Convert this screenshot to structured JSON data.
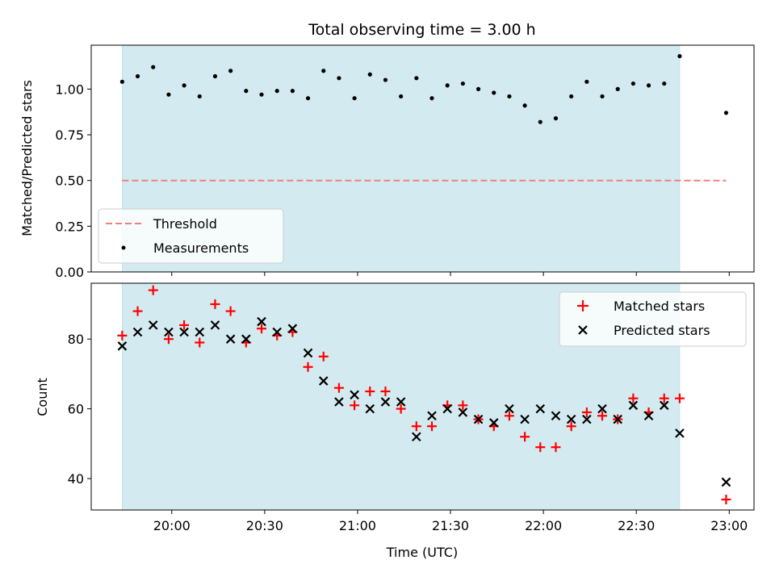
{
  "chart_data": {
    "title": "Total observing time = 3.00 h",
    "xlabel": "Time (UTC)",
    "x_ticks": [
      "20:00",
      "20:30",
      "21:00",
      "21:30",
      "22:00",
      "22:30",
      "23:00"
    ],
    "xlim": [
      "19:34",
      "23:08"
    ],
    "shaded_interval": [
      "19:44",
      "22:44"
    ],
    "shade_color": "#d3ebf0",
    "panels": [
      {
        "type": "scatter",
        "ylabel": "Matched/Predicted stars",
        "ylim": [
          0,
          1.24
        ],
        "y_ticks": [
          "0.00",
          "0.25",
          "0.50",
          "0.75",
          "1.00"
        ],
        "threshold": {
          "name": "Threshold",
          "value": 0.5,
          "x_range": [
            "19:44",
            "22:59"
          ],
          "color": "#f08080"
        },
        "series": [
          {
            "name": "Measurements",
            "color": "#000000",
            "marker": "dot",
            "points": [
              [
                "19:44",
                1.04
              ],
              [
                "19:49",
                1.07
              ],
              [
                "19:54",
                1.12
              ],
              [
                "19:59",
                0.97
              ],
              [
                "20:04",
                1.02
              ],
              [
                "20:09",
                0.96
              ],
              [
                "20:14",
                1.07
              ],
              [
                "20:19",
                1.1
              ],
              [
                "20:24",
                0.99
              ],
              [
                "20:29",
                0.97
              ],
              [
                "20:34",
                0.99
              ],
              [
                "20:39",
                0.99
              ],
              [
                "20:44",
                0.95
              ],
              [
                "20:49",
                1.1
              ],
              [
                "20:54",
                1.06
              ],
              [
                "20:59",
                0.95
              ],
              [
                "21:04",
                1.08
              ],
              [
                "21:09",
                1.05
              ],
              [
                "21:14",
                0.96
              ],
              [
                "21:19",
                1.06
              ],
              [
                "21:24",
                0.95
              ],
              [
                "21:29",
                1.02
              ],
              [
                "21:34",
                1.03
              ],
              [
                "21:39",
                1.0
              ],
              [
                "21:44",
                0.98
              ],
              [
                "21:49",
                0.96
              ],
              [
                "21:54",
                0.91
              ],
              [
                "21:59",
                0.82
              ],
              [
                "22:04",
                0.84
              ],
              [
                "22:09",
                0.96
              ],
              [
                "22:14",
                1.04
              ],
              [
                "22:19",
                0.96
              ],
              [
                "22:24",
                1.0
              ],
              [
                "22:29",
                1.03
              ],
              [
                "22:34",
                1.02
              ],
              [
                "22:39",
                1.03
              ],
              [
                "22:44",
                1.18
              ],
              [
                "22:59",
                0.87
              ]
            ]
          }
        ],
        "legend": {
          "placement": "lower-left",
          "entries": [
            "Threshold",
            "Measurements"
          ]
        }
      },
      {
        "type": "scatter",
        "ylabel": "Count",
        "ylim": [
          31,
          96
        ],
        "y_ticks": [
          "40",
          "60",
          "80"
        ],
        "series": [
          {
            "name": "Matched stars",
            "color": "#ff0000",
            "marker": "plus",
            "points": [
              [
                "19:44",
                81
              ],
              [
                "19:49",
                88
              ],
              [
                "19:54",
                94
              ],
              [
                "19:59",
                80
              ],
              [
                "20:04",
                84
              ],
              [
                "20:09",
                79
              ],
              [
                "20:14",
                90
              ],
              [
                "20:19",
                88
              ],
              [
                "20:24",
                79
              ],
              [
                "20:29",
                83
              ],
              [
                "20:34",
                81
              ],
              [
                "20:39",
                82
              ],
              [
                "20:44",
                72
              ],
              [
                "20:49",
                75
              ],
              [
                "20:54",
                66
              ],
              [
                "20:59",
                61
              ],
              [
                "21:04",
                65
              ],
              [
                "21:09",
                65
              ],
              [
                "21:14",
                60
              ],
              [
                "21:19",
                55
              ],
              [
                "21:24",
                55
              ],
              [
                "21:29",
                61
              ],
              [
                "21:34",
                61
              ],
              [
                "21:39",
                57
              ],
              [
                "21:44",
                55
              ],
              [
                "21:49",
                58
              ],
              [
                "21:54",
                52
              ],
              [
                "21:59",
                49
              ],
              [
                "22:04",
                49
              ],
              [
                "22:09",
                55
              ],
              [
                "22:14",
                59
              ],
              [
                "22:19",
                58
              ],
              [
                "22:24",
                57
              ],
              [
                "22:29",
                63
              ],
              [
                "22:34",
                59
              ],
              [
                "22:39",
                63
              ],
              [
                "22:44",
                63
              ],
              [
                "22:59",
                34
              ]
            ]
          },
          {
            "name": "Predicted stars",
            "color": "#000000",
            "marker": "x",
            "points": [
              [
                "19:44",
                78
              ],
              [
                "19:49",
                82
              ],
              [
                "19:54",
                84
              ],
              [
                "19:59",
                82
              ],
              [
                "20:04",
                82
              ],
              [
                "20:09",
                82
              ],
              [
                "20:14",
                84
              ],
              [
                "20:19",
                80
              ],
              [
                "20:24",
                80
              ],
              [
                "20:29",
                85
              ],
              [
                "20:34",
                82
              ],
              [
                "20:39",
                83
              ],
              [
                "20:44",
                76
              ],
              [
                "20:49",
                68
              ],
              [
                "20:54",
                62
              ],
              [
                "20:59",
                64
              ],
              [
                "21:04",
                60
              ],
              [
                "21:09",
                62
              ],
              [
                "21:14",
                62
              ],
              [
                "21:19",
                52
              ],
              [
                "21:24",
                58
              ],
              [
                "21:29",
                60
              ],
              [
                "21:34",
                59
              ],
              [
                "21:39",
                57
              ],
              [
                "21:44",
                56
              ],
              [
                "21:49",
                60
              ],
              [
                "21:54",
                57
              ],
              [
                "21:59",
                60
              ],
              [
                "22:04",
                58
              ],
              [
                "22:09",
                57
              ],
              [
                "22:14",
                57
              ],
              [
                "22:19",
                60
              ],
              [
                "22:24",
                57
              ],
              [
                "22:29",
                61
              ],
              [
                "22:34",
                58
              ],
              [
                "22:39",
                61
              ],
              [
                "22:44",
                53
              ],
              [
                "22:59",
                39
              ]
            ]
          }
        ],
        "legend": {
          "placement": "upper-right",
          "entries": [
            "Matched stars",
            "Predicted stars"
          ]
        }
      }
    ]
  }
}
